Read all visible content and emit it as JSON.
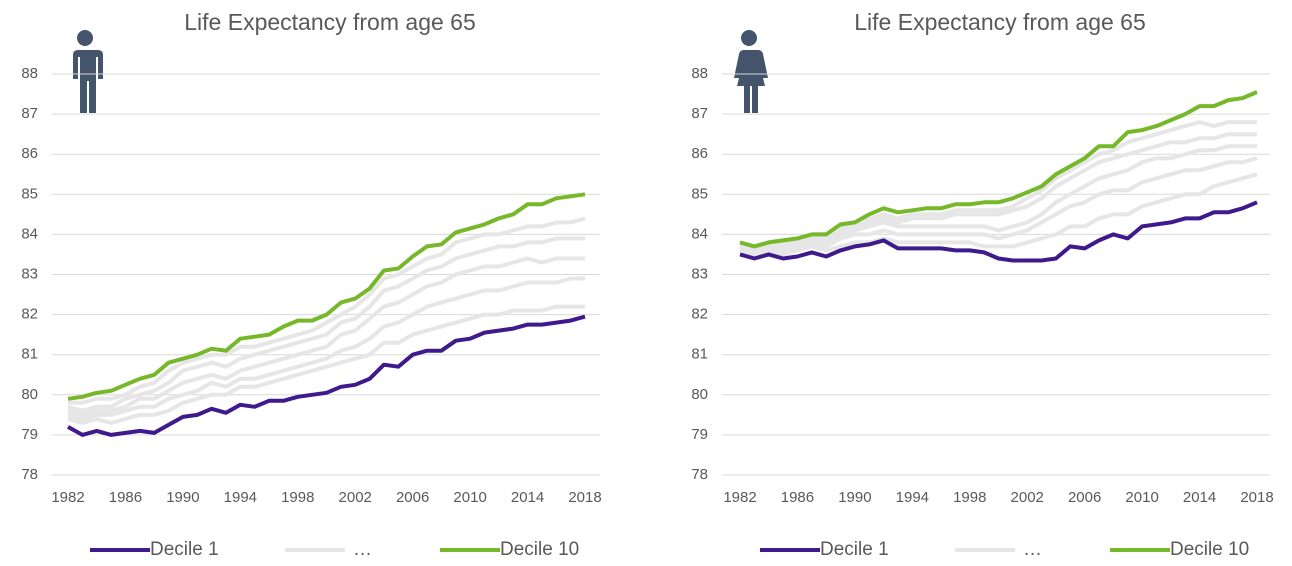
{
  "chart_data": [
    {
      "type": "line",
      "title": "Life Expectancy from age 65",
      "x": [
        1982,
        1983,
        1984,
        1985,
        1986,
        1987,
        1988,
        1989,
        1990,
        1991,
        1992,
        1993,
        1994,
        1995,
        1996,
        1997,
        1998,
        1999,
        2000,
        2001,
        2002,
        2003,
        2004,
        2005,
        2006,
        2007,
        2008,
        2009,
        2010,
        2011,
        2012,
        2013,
        2014,
        2015,
        2016,
        2017,
        2018
      ],
      "xlim": [
        1982,
        2018
      ],
      "xticks": [
        1982,
        1986,
        1990,
        1994,
        1998,
        2002,
        2006,
        2010,
        2014,
        2018
      ],
      "ylim": [
        78,
        88
      ],
      "yticks": [
        78,
        79,
        80,
        81,
        82,
        83,
        84,
        85,
        86,
        87,
        88
      ],
      "grid": true,
      "legend": "bottom",
      "series": [
        {
          "name": "Decile 1",
          "color": "#3f1a8c",
          "values": [
            79.2,
            79.0,
            79.1,
            79.0,
            79.05,
            79.1,
            79.05,
            79.25,
            79.45,
            79.5,
            79.65,
            79.55,
            79.75,
            79.7,
            79.85,
            79.85,
            79.95,
            80.0,
            80.05,
            80.2,
            80.25,
            80.4,
            80.75,
            80.7,
            81.0,
            81.1,
            81.1,
            81.35,
            81.4,
            81.55,
            81.6,
            81.65,
            81.75,
            81.75,
            81.8,
            81.85,
            81.95
          ]
        },
        {
          "name": "…",
          "color": "#e6e6e6",
          "lines": [
            [
              79.4,
              79.3,
              79.4,
              79.3,
              79.4,
              79.5,
              79.5,
              79.6,
              79.8,
              79.9,
              80.0,
              80.0,
              80.2,
              80.2,
              80.3,
              80.4,
              80.5,
              80.6,
              80.7,
              80.8,
              80.9,
              81.0,
              81.3,
              81.3,
              81.5,
              81.6,
              81.7,
              81.8,
              81.9,
              82.0,
              82.0,
              82.1,
              82.1,
              82.1,
              82.2,
              82.2,
              82.2
            ],
            [
              79.5,
              79.4,
              79.5,
              79.5,
              79.6,
              79.7,
              79.7,
              79.9,
              80.0,
              80.1,
              80.3,
              80.2,
              80.4,
              80.4,
              80.5,
              80.6,
              80.7,
              80.8,
              80.9,
              81.1,
              81.2,
              81.4,
              81.7,
              81.8,
              82.0,
              82.2,
              82.3,
              82.4,
              82.5,
              82.6,
              82.6,
              82.7,
              82.8,
              82.8,
              82.8,
              82.9,
              82.9
            ],
            [
              79.6,
              79.5,
              79.6,
              79.6,
              79.7,
              79.9,
              79.9,
              80.1,
              80.3,
              80.4,
              80.5,
              80.4,
              80.6,
              80.7,
              80.8,
              80.9,
              81.0,
              81.1,
              81.2,
              81.5,
              81.6,
              81.9,
              82.2,
              82.3,
              82.5,
              82.7,
              82.8,
              83.0,
              83.1,
              83.2,
              83.2,
              83.3,
              83.4,
              83.3,
              83.4,
              83.4,
              83.4
            ],
            [
              79.7,
              79.6,
              79.7,
              79.7,
              79.9,
              80.0,
              80.1,
              80.3,
              80.6,
              80.7,
              80.8,
              80.7,
              80.9,
              81.0,
              81.1,
              81.2,
              81.3,
              81.4,
              81.5,
              81.8,
              81.9,
              82.2,
              82.6,
              82.7,
              82.9,
              83.1,
              83.2,
              83.4,
              83.5,
              83.6,
              83.7,
              83.7,
              83.8,
              83.8,
              83.9,
              83.9,
              83.9
            ],
            [
              79.8,
              79.8,
              79.9,
              79.9,
              80.0,
              80.2,
              80.3,
              80.6,
              80.8,
              80.9,
              81.0,
              81.0,
              81.2,
              81.2,
              81.3,
              81.4,
              81.5,
              81.6,
              81.8,
              82.0,
              82.2,
              82.5,
              82.9,
              83.0,
              83.2,
              83.4,
              83.5,
              83.8,
              83.9,
              84.0,
              84.0,
              84.1,
              84.2,
              84.2,
              84.3,
              84.3,
              84.4
            ]
          ]
        },
        {
          "name": "Decile 10",
          "color": "#76b82a",
          "values": [
            79.9,
            79.95,
            80.05,
            80.1,
            80.25,
            80.4,
            80.5,
            80.8,
            80.9,
            81.0,
            81.15,
            81.1,
            81.4,
            81.45,
            81.5,
            81.7,
            81.85,
            81.85,
            82.0,
            82.3,
            82.4,
            82.65,
            83.1,
            83.15,
            83.45,
            83.7,
            83.75,
            84.05,
            84.15,
            84.25,
            84.4,
            84.5,
            84.75,
            84.75,
            84.9,
            84.95,
            85.0
          ]
        }
      ]
    },
    {
      "type": "line",
      "title": "Life Expectancy from age 65",
      "x": [
        1982,
        1983,
        1984,
        1985,
        1986,
        1987,
        1988,
        1989,
        1990,
        1991,
        1992,
        1993,
        1994,
        1995,
        1996,
        1997,
        1998,
        1999,
        2000,
        2001,
        2002,
        2003,
        2004,
        2005,
        2006,
        2007,
        2008,
        2009,
        2010,
        2011,
        2012,
        2013,
        2014,
        2015,
        2016,
        2017,
        2018
      ],
      "xlim": [
        1982,
        2018
      ],
      "xticks": [
        1982,
        1986,
        1990,
        1994,
        1998,
        2002,
        2006,
        2010,
        2014,
        2018
      ],
      "ylim": [
        78,
        88
      ],
      "yticks": [
        78,
        79,
        80,
        81,
        82,
        83,
        84,
        85,
        86,
        87,
        88
      ],
      "grid": true,
      "legend": "bottom",
      "series": [
        {
          "name": "Decile 1",
          "color": "#3f1a8c",
          "values": [
            83.5,
            83.4,
            83.5,
            83.4,
            83.45,
            83.55,
            83.45,
            83.6,
            83.7,
            83.75,
            83.85,
            83.65,
            83.65,
            83.65,
            83.65,
            83.6,
            83.6,
            83.55,
            83.4,
            83.35,
            83.35,
            83.35,
            83.4,
            83.7,
            83.65,
            83.85,
            84.0,
            83.9,
            84.2,
            84.25,
            84.3,
            84.4,
            84.4,
            84.55,
            84.55,
            84.65,
            84.8
          ]
        },
        {
          "name": "…",
          "color": "#e6e6e6",
          "lines": [
            [
              83.6,
              83.5,
              83.6,
              83.5,
              83.6,
              83.7,
              83.6,
              83.7,
              83.8,
              83.8,
              83.9,
              83.8,
              83.8,
              83.8,
              83.8,
              83.8,
              83.8,
              83.7,
              83.7,
              83.7,
              83.8,
              83.9,
              84.0,
              84.2,
              84.2,
              84.4,
              84.5,
              84.5,
              84.7,
              84.8,
              84.9,
              85.0,
              85.0,
              85.2,
              85.3,
              85.4,
              85.5
            ],
            [
              83.6,
              83.6,
              83.6,
              83.6,
              83.7,
              83.8,
              83.7,
              83.9,
              84.0,
              84.0,
              84.1,
              84.0,
              84.0,
              84.0,
              84.0,
              84.0,
              84.0,
              84.0,
              83.9,
              84.0,
              84.1,
              84.3,
              84.5,
              84.7,
              84.8,
              85.0,
              85.1,
              85.1,
              85.3,
              85.4,
              85.5,
              85.6,
              85.6,
              85.7,
              85.8,
              85.8,
              85.9
            ],
            [
              83.7,
              83.6,
              83.7,
              83.7,
              83.8,
              83.9,
              83.8,
              84.0,
              84.1,
              84.2,
              84.3,
              84.2,
              84.2,
              84.2,
              84.2,
              84.2,
              84.2,
              84.2,
              84.1,
              84.2,
              84.3,
              84.5,
              84.8,
              85.0,
              85.2,
              85.4,
              85.5,
              85.6,
              85.8,
              85.9,
              85.9,
              86.0,
              86.1,
              86.1,
              86.2,
              86.2,
              86.2
            ],
            [
              83.7,
              83.6,
              83.7,
              83.7,
              83.8,
              83.9,
              83.9,
              84.1,
              84.2,
              84.3,
              84.4,
              84.3,
              84.4,
              84.4,
              84.4,
              84.5,
              84.5,
              84.5,
              84.5,
              84.6,
              84.7,
              84.9,
              85.2,
              85.4,
              85.6,
              85.8,
              85.9,
              86.0,
              86.1,
              86.2,
              86.3,
              86.3,
              86.4,
              86.4,
              86.5,
              86.5,
              86.5
            ],
            [
              83.7,
              83.7,
              83.8,
              83.8,
              83.9,
              84.0,
              84.0,
              84.2,
              84.3,
              84.4,
              84.5,
              84.4,
              84.5,
              84.5,
              84.5,
              84.6,
              84.6,
              84.6,
              84.6,
              84.7,
              84.9,
              85.1,
              85.4,
              85.6,
              85.8,
              86.0,
              86.1,
              86.3,
              86.4,
              86.5,
              86.6,
              86.7,
              86.8,
              86.7,
              86.8,
              86.8,
              86.8
            ]
          ]
        },
        {
          "name": "Decile 10",
          "color": "#76b82a",
          "values": [
            83.8,
            83.7,
            83.8,
            83.85,
            83.9,
            84.0,
            84.0,
            84.25,
            84.3,
            84.5,
            84.65,
            84.55,
            84.6,
            84.65,
            84.65,
            84.75,
            84.75,
            84.8,
            84.8,
            84.9,
            85.05,
            85.2,
            85.5,
            85.7,
            85.9,
            86.2,
            86.2,
            86.55,
            86.6,
            86.7,
            86.85,
            87.0,
            87.2,
            87.2,
            87.35,
            87.4,
            87.55
          ]
        }
      ]
    }
  ]
}
